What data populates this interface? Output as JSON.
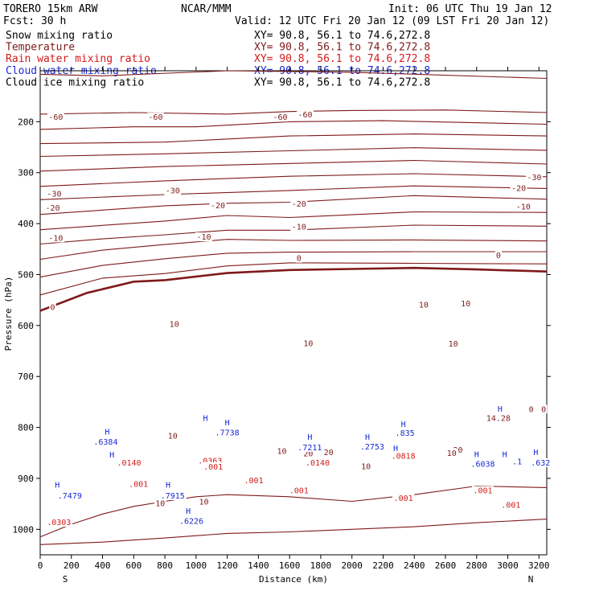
{
  "header": {
    "model": "TORERO   15km ARW",
    "forecast": "Fcst:   30 h",
    "center": "NCAR/MMM",
    "init": "Init: 06 UTC Thu 19 Jan 12",
    "valid": "Valid: 12 UTC Fri 20 Jan 12 (09 LST Fri 20 Jan 12)"
  },
  "fields": [
    {
      "name": "Snow mixing ratio",
      "xy": "XY=  90.8, 56.1 to  74.6,272.8",
      "color": "#000000"
    },
    {
      "name": "Temperature",
      "xy": "XY=  90.8, 56.1 to  74.6,272.8",
      "color": "#7f1a1a"
    },
    {
      "name": "Rain water mixing ratio",
      "xy": "XY=  90.8, 56.1 to  74.6,272.8",
      "color": "#d41a1a"
    },
    {
      "name": "Cloud water mixing ratio",
      "xy": "XY=  90.8, 56.1 to  74.6,272.8",
      "color": "#1a2ad4"
    },
    {
      "name": "Cloud ice mixing ratio",
      "xy": "XY=  90.8, 56.1 to  74.6,272.8",
      "color": "#000000"
    }
  ],
  "chart_data": {
    "type": "contour",
    "xlabel": "Distance (km)",
    "ylabel": "Pressure (hPa)",
    "xlim": [
      0,
      3250
    ],
    "ylim": [
      1050,
      100
    ],
    "x_ticks": [
      0,
      200,
      400,
      600,
      800,
      1000,
      1200,
      1400,
      1600,
      1800,
      2000,
      2200,
      2400,
      2600,
      2800,
      3000,
      3200
    ],
    "y_ticks": [
      200,
      300,
      400,
      500,
      600,
      700,
      800,
      900,
      1000
    ],
    "endpoints": {
      "left": "S",
      "right": "N"
    },
    "temperature_labels": [
      {
        "x": 100,
        "y": 195,
        "text": "-60"
      },
      {
        "x": 740,
        "y": 195,
        "text": "-60"
      },
      {
        "x": 1540,
        "y": 195,
        "text": "-60"
      },
      {
        "x": 1700,
        "y": 190,
        "text": "-60"
      },
      {
        "x": 3170,
        "y": 313,
        "text": "-30"
      },
      {
        "x": 90,
        "y": 345,
        "text": "-30"
      },
      {
        "x": 850,
        "y": 339,
        "text": "-30"
      },
      {
        "x": 3070,
        "y": 334,
        "text": "-20"
      },
      {
        "x": 80,
        "y": 373,
        "text": "-20"
      },
      {
        "x": 1140,
        "y": 368,
        "text": "-20"
      },
      {
        "x": 1660,
        "y": 365,
        "text": "-20"
      },
      {
        "x": 3100,
        "y": 371,
        "text": "-10"
      },
      {
        "x": 1660,
        "y": 410,
        "text": "-10"
      },
      {
        "x": 1050,
        "y": 430,
        "text": "-10"
      },
      {
        "x": 100,
        "y": 432,
        "text": "-10"
      },
      {
        "x": 1660,
        "y": 472,
        "text": "0"
      },
      {
        "x": 2940,
        "y": 466,
        "text": "0"
      },
      {
        "x": 80,
        "y": 568,
        "text": "0"
      },
      {
        "x": 2460,
        "y": 563,
        "text": "10"
      },
      {
        "x": 2730,
        "y": 561,
        "text": "10"
      },
      {
        "x": 860,
        "y": 601,
        "text": "10"
      },
      {
        "x": 1720,
        "y": 639,
        "text": "10"
      },
      {
        "x": 2650,
        "y": 640,
        "text": "10"
      },
      {
        "x": 1720,
        "y": 855,
        "text": "20"
      },
      {
        "x": 1850,
        "y": 853,
        "text": "20"
      },
      {
        "x": 2680,
        "y": 848,
        "text": "20"
      },
      {
        "x": 3150,
        "y": 768,
        "text": "0"
      },
      {
        "x": 3230,
        "y": 768,
        "text": "0"
      }
    ],
    "temperature_contours": [
      {
        "bold": false,
        "points": [
          [
            0,
            107
          ],
          [
            400,
            110
          ],
          [
            1200,
            100
          ],
          [
            2000,
            103
          ],
          [
            3250,
            115
          ]
        ]
      },
      {
        "bold": false,
        "points": [
          [
            0,
            185
          ],
          [
            600,
            182
          ],
          [
            1200,
            185
          ],
          [
            1600,
            180
          ],
          [
            2000,
            178
          ],
          [
            2600,
            177
          ],
          [
            3250,
            182
          ]
        ]
      },
      {
        "bold": false,
        "points": [
          [
            0,
            215
          ],
          [
            600,
            210
          ],
          [
            1000,
            210
          ],
          [
            1600,
            200
          ],
          [
            2200,
            198
          ],
          [
            3250,
            205
          ]
        ]
      },
      {
        "bold": false,
        "points": [
          [
            0,
            243
          ],
          [
            800,
            240
          ],
          [
            1600,
            228
          ],
          [
            2400,
            224
          ],
          [
            3250,
            228
          ]
        ]
      },
      {
        "bold": false,
        "points": [
          [
            0,
            268
          ],
          [
            800,
            263
          ],
          [
            1600,
            257
          ],
          [
            2400,
            251
          ],
          [
            3250,
            256
          ]
        ]
      },
      {
        "bold": false,
        "points": [
          [
            0,
            297
          ],
          [
            800,
            288
          ],
          [
            1600,
            282
          ],
          [
            2400,
            276
          ],
          [
            3250,
            283
          ]
        ]
      },
      {
        "bold": false,
        "points": [
          [
            0,
            327
          ],
          [
            800,
            316
          ],
          [
            1600,
            307
          ],
          [
            2400,
            302
          ],
          [
            3250,
            308
          ]
        ]
      },
      {
        "bold": false,
        "points": [
          [
            0,
            353
          ],
          [
            800,
            343
          ],
          [
            1600,
            335
          ],
          [
            2400,
            326
          ],
          [
            3250,
            331
          ]
        ]
      },
      {
        "bold": false,
        "points": [
          [
            0,
            382
          ],
          [
            800,
            365
          ],
          [
            1200,
            360
          ],
          [
            1600,
            358
          ],
          [
            2400,
            345
          ],
          [
            3250,
            352
          ]
        ]
      },
      {
        "bold": false,
        "points": [
          [
            0,
            412
          ],
          [
            800,
            395
          ],
          [
            1200,
            384
          ],
          [
            1600,
            388
          ],
          [
            2400,
            377
          ],
          [
            3250,
            378
          ]
        ]
      },
      {
        "bold": false,
        "points": [
          [
            0,
            440
          ],
          [
            400,
            430
          ],
          [
            800,
            422
          ],
          [
            1200,
            413
          ],
          [
            1600,
            413
          ],
          [
            2400,
            403
          ],
          [
            3250,
            405
          ]
        ]
      },
      {
        "bold": false,
        "points": [
          [
            0,
            470
          ],
          [
            400,
            452
          ],
          [
            800,
            441
          ],
          [
            1200,
            431
          ],
          [
            1600,
            433
          ],
          [
            2400,
            432
          ],
          [
            3250,
            434
          ]
        ]
      },
      {
        "bold": false,
        "points": [
          [
            0,
            505
          ],
          [
            400,
            482
          ],
          [
            800,
            469
          ],
          [
            1200,
            458
          ],
          [
            1600,
            456
          ],
          [
            2400,
            455
          ],
          [
            3250,
            455
          ]
        ]
      },
      {
        "bold": false,
        "points": [
          [
            0,
            540
          ],
          [
            400,
            507
          ],
          [
            800,
            498
          ],
          [
            1200,
            483
          ],
          [
            1600,
            477
          ],
          [
            2400,
            478
          ],
          [
            3250,
            479
          ]
        ]
      },
      {
        "bold": true,
        "points": [
          [
            0,
            571
          ],
          [
            300,
            536
          ],
          [
            600,
            514
          ],
          [
            800,
            511
          ],
          [
            1200,
            497
          ],
          [
            1600,
            491
          ],
          [
            2000,
            489
          ],
          [
            2400,
            487
          ],
          [
            2800,
            490
          ],
          [
            3250,
            494
          ]
        ]
      },
      {
        "bold": false,
        "points": [
          [
            0,
            1015
          ],
          [
            200,
            990
          ],
          [
            400,
            970
          ],
          [
            600,
            955
          ],
          [
            800,
            945
          ],
          [
            1000,
            936
          ],
          [
            1200,
            932
          ],
          [
            1600,
            936
          ],
          [
            2000,
            945
          ],
          [
            2400,
            932
          ],
          [
            2800,
            915
          ],
          [
            3250,
            918
          ]
        ]
      },
      {
        "bold": false,
        "points": [
          [
            0,
            1030
          ],
          [
            400,
            1025
          ],
          [
            800,
            1017
          ],
          [
            1200,
            1008
          ],
          [
            1600,
            1005
          ],
          [
            2000,
            1000
          ],
          [
            2400,
            995
          ],
          [
            2800,
            987
          ],
          [
            3250,
            980
          ]
        ]
      }
    ],
    "rain_labels": [
      {
        "x": 570,
        "y": 873,
        "text": ".0140"
      },
      {
        "x": 1090,
        "y": 869,
        "text": ".0363"
      },
      {
        "x": 1780,
        "y": 873,
        "text": ".0140"
      },
      {
        "x": 2330,
        "y": 860,
        "text": ".0818"
      },
      {
        "x": 120,
        "y": 990,
        "text": ".0303"
      },
      {
        "x": 630,
        "y": 915,
        "text": ".001"
      },
      {
        "x": 1110,
        "y": 881,
        "text": ".001"
      },
      {
        "x": 1370,
        "y": 908,
        "text": ".001"
      },
      {
        "x": 1660,
        "y": 928,
        "text": ".001"
      },
      {
        "x": 2330,
        "y": 943,
        "text": ".001"
      },
      {
        "x": 2840,
        "y": 928,
        "text": ".001"
      },
      {
        "x": 3020,
        "y": 956,
        "text": ".001"
      }
    ],
    "cloud_water_labels": [
      {
        "x": 420,
        "y": 832,
        "text": ".6384"
      },
      {
        "x": 1200,
        "y": 814,
        "text": ".7738"
      },
      {
        "x": 1730,
        "y": 843,
        "text": ".7211"
      },
      {
        "x": 2130,
        "y": 842,
        "text": ".2753"
      },
      {
        "x": 2340,
        "y": 815,
        "text": ".835"
      },
      {
        "x": 190,
        "y": 938,
        "text": ".7479"
      },
      {
        "x": 850,
        "y": 938,
        "text": ".7915"
      },
      {
        "x": 970,
        "y": 988,
        "text": ".6226"
      },
      {
        "x": 2840,
        "y": 876,
        "text": ".6038"
      },
      {
        "x": 3210,
        "y": 873,
        "text": ".632"
      },
      {
        "x": 3060,
        "y": 871,
        "text": ".1"
      }
    ],
    "high_markers": [
      {
        "x": 430,
        "y": 808,
        "text": "H"
      },
      {
        "x": 1200,
        "y": 790,
        "text": "H"
      },
      {
        "x": 1730,
        "y": 818,
        "text": "H"
      },
      {
        "x": 2100,
        "y": 818,
        "text": "H"
      },
      {
        "x": 2330,
        "y": 793,
        "text": "H"
      },
      {
        "x": 2800,
        "y": 852,
        "text": "H"
      },
      {
        "x": 2950,
        "y": 763,
        "text": "H"
      },
      {
        "x": 110,
        "y": 912,
        "text": "H"
      },
      {
        "x": 820,
        "y": 912,
        "text": "H"
      },
      {
        "x": 950,
        "y": 963,
        "text": "H"
      },
      {
        "x": 1060,
        "y": 781,
        "text": "H"
      },
      {
        "x": 3180,
        "y": 848,
        "text": "H"
      },
      {
        "x": 2980,
        "y": 852,
        "text": "H"
      },
      {
        "x": 460,
        "y": 853,
        "text": "H"
      },
      {
        "x": 2280,
        "y": 840,
        "text": "H"
      }
    ],
    "annotations": [
      {
        "x": 2940,
        "y": 786,
        "text": "14.28"
      },
      {
        "x": 850,
        "y": 820,
        "text": "10"
      },
      {
        "x": 770,
        "y": 953,
        "text": "10"
      },
      {
        "x": 1050,
        "y": 950,
        "text": "10"
      },
      {
        "x": 2090,
        "y": 880,
        "text": "10"
      },
      {
        "x": 2640,
        "y": 854,
        "text": "10"
      },
      {
        "x": 1550,
        "y": 850,
        "text": "10"
      }
    ]
  }
}
